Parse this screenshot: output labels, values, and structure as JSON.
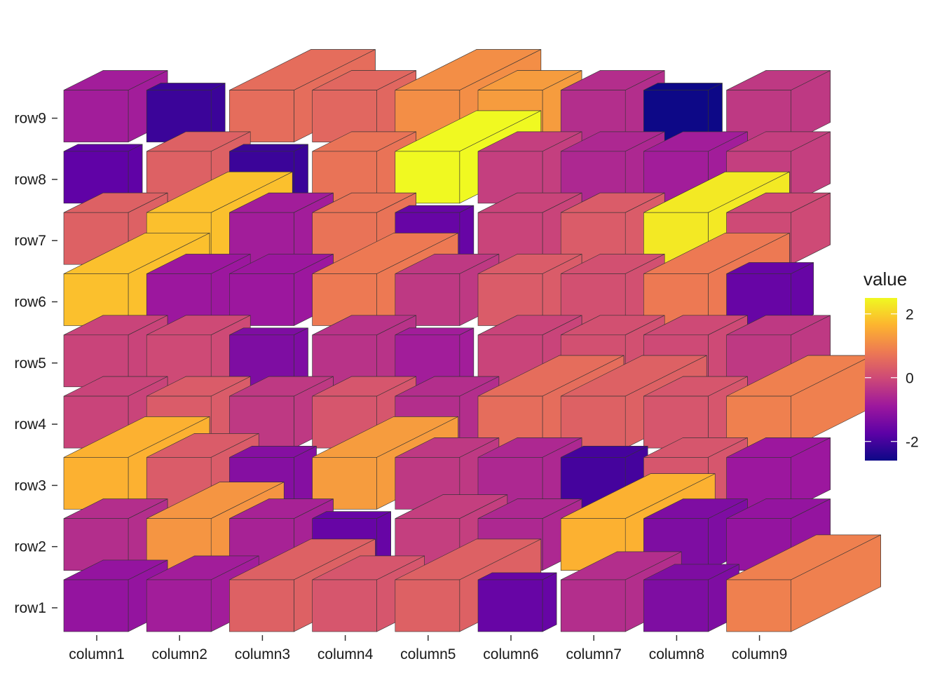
{
  "chart_data": {
    "type": "heatmap",
    "subtype": "3d-cube-heatmap",
    "title": "",
    "xlabel": "",
    "ylabel": "",
    "columns": [
      "column1",
      "column2",
      "column3",
      "column4",
      "column5",
      "column6",
      "column7",
      "column8",
      "column9"
    ],
    "rows": [
      "row1",
      "row2",
      "row3",
      "row4",
      "row5",
      "row6",
      "row7",
      "row8",
      "row9"
    ],
    "values": [
      [
        -1.0,
        -0.8,
        0.4,
        0.2,
        0.4,
        -1.6,
        -0.5,
        -1.3,
        0.9
      ],
      [
        -0.5,
        1.2,
        -0.7,
        -1.6,
        -0.2,
        -0.6,
        1.6,
        -1.3,
        -1.0
      ],
      [
        1.6,
        0.3,
        -1.2,
        1.3,
        -0.3,
        -0.6,
        -2.0,
        0.2,
        -0.9
      ],
      [
        -0.1,
        0.3,
        -0.3,
        0.2,
        -0.5,
        0.6,
        0.4,
        0.2,
        0.9
      ],
      [
        -0.1,
        0.0,
        -1.3,
        -0.4,
        -0.8,
        -0.1,
        0.1,
        0.0,
        -0.3
      ],
      [
        1.8,
        -0.9,
        -0.9,
        0.8,
        -0.3,
        0.3,
        0.1,
        0.8,
        -1.6
      ],
      [
        0.4,
        1.8,
        -0.8,
        0.7,
        -1.6,
        -0.1,
        0.3,
        2.3,
        0.0
      ],
      [
        -1.7,
        0.4,
        -2.1,
        0.7,
        2.5,
        -0.2,
        -0.6,
        -0.8,
        -0.2
      ],
      [
        -0.8,
        -2.1,
        0.6,
        0.5,
        1.1,
        1.3,
        -0.5,
        -2.6,
        -0.3
      ]
    ],
    "heights": [
      [
        0.3,
        0.4,
        0.8,
        0.4,
        0.8,
        0.0,
        0.5,
        0.2,
        0.9
      ],
      [
        0.3,
        0.7,
        0.3,
        0.0,
        0.4,
        0.3,
        0.9,
        0.3,
        0.3
      ],
      [
        0.8,
        0.4,
        0.1,
        0.8,
        0.3,
        0.3,
        0.1,
        0.3,
        0.3
      ],
      [
        0.3,
        0.3,
        0.3,
        0.3,
        0.3,
        0.8,
        0.8,
        0.3,
        0.8
      ],
      [
        0.3,
        0.3,
        0.0,
        0.3,
        0.0,
        0.3,
        0.3,
        0.3,
        0.3
      ],
      [
        0.8,
        0.3,
        0.3,
        0.8,
        0.3,
        0.3,
        0.3,
        0.8,
        0.1
      ],
      [
        0.3,
        0.8,
        0.3,
        0.3,
        0.0,
        0.3,
        0.3,
        0.8,
        0.3
      ],
      [
        0.0,
        0.3,
        0.0,
        0.3,
        0.8,
        0.3,
        0.3,
        0.3,
        0.3
      ],
      [
        0.3,
        0.0,
        0.8,
        0.3,
        0.8,
        0.3,
        0.3,
        0.0,
        0.3
      ]
    ],
    "legend": {
      "title": "value",
      "ticks": [
        -2,
        0,
        2
      ],
      "tick_labels": [
        "-2",
        "0",
        "2"
      ],
      "range": [
        -2.6,
        2.5
      ],
      "position": "right"
    },
    "colormap": [
      "#0d0887",
      "#5c01a6",
      "#9c179e",
      "#cc4778",
      "#ed7953",
      "#fdb42f",
      "#f0f921"
    ],
    "grid": false,
    "background": "#ffffff"
  }
}
